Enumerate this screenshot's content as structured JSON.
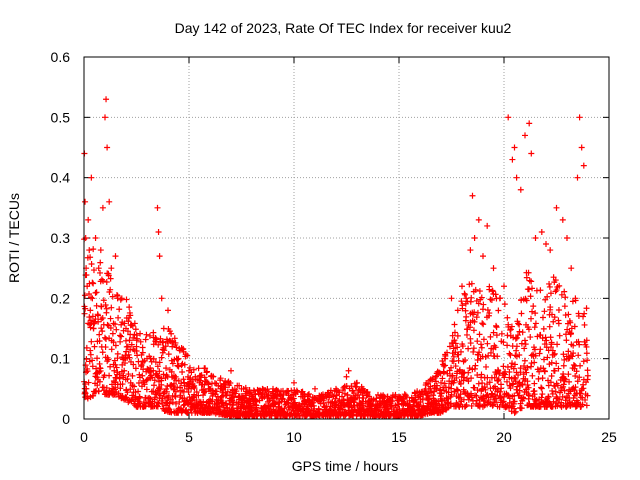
{
  "chart_data": {
    "type": "scatter",
    "title": "Day 142 of 2023, Rate Of TEC Index for receiver kuu2",
    "xlabel": "GPS time / hours",
    "ylabel": "ROTI / TECUs",
    "xlim": [
      0,
      25
    ],
    "ylim": [
      0,
      0.6
    ],
    "xticks": [
      "0",
      "5",
      "10",
      "15",
      "20",
      "25"
    ],
    "yticks": [
      "0",
      "0.1",
      "0.2",
      "0.3",
      "0.4",
      "0.5",
      "0.6"
    ],
    "grid": true,
    "marker": "+",
    "color": "#ff0000",
    "series": [
      {
        "x": [
          0.02,
          0.05,
          0.08,
          0.1,
          0.15,
          0.2,
          0.25,
          0.3,
          0.35,
          0.4,
          0.45,
          0.5,
          0.55,
          0.6,
          0.7,
          0.8,
          0.9,
          1.0,
          1.05,
          1.1,
          1.2,
          1.3,
          1.5,
          1.6,
          1.8,
          2.0,
          2.2,
          2.5,
          2.8,
          3.0,
          3.3,
          3.5,
          3.55,
          3.6,
          3.7,
          3.8,
          4.0,
          4.2,
          4.5,
          4.8,
          5.0,
          5.3,
          5.5,
          6.0,
          6.5,
          7.0,
          7.5,
          8.0,
          8.5,
          9.0,
          9.5,
          10.0,
          10.5,
          11.0,
          11.5,
          12.0,
          12.5,
          12.6,
          13.0,
          13.5,
          14.0,
          14.5,
          15.0,
          15.5,
          16.0,
          16.5,
          17.0,
          17.2,
          17.5,
          17.8,
          18.0,
          18.2,
          18.4,
          18.5,
          18.6,
          18.8,
          19.0,
          19.2,
          19.5,
          19.8,
          20.0,
          20.2,
          20.4,
          20.5,
          20.6,
          20.8,
          21.0,
          21.2,
          21.3,
          21.5,
          21.8,
          22.0,
          22.2,
          22.5,
          22.8,
          23.0,
          23.2,
          23.4,
          23.5,
          23.6,
          23.7,
          23.8
        ],
        "y": [
          0.44,
          0.36,
          0.3,
          0.25,
          0.22,
          0.33,
          0.28,
          0.18,
          0.4,
          0.2,
          0.15,
          0.12,
          0.3,
          0.21,
          0.25,
          0.28,
          0.35,
          0.5,
          0.53,
          0.45,
          0.36,
          0.25,
          0.27,
          0.2,
          0.2,
          0.15,
          0.14,
          0.12,
          0.11,
          0.1,
          0.08,
          0.35,
          0.31,
          0.27,
          0.2,
          0.15,
          0.18,
          0.12,
          0.1,
          0.09,
          0.08,
          0.07,
          0.06,
          0.05,
          0.05,
          0.08,
          0.05,
          0.04,
          0.05,
          0.05,
          0.04,
          0.06,
          0.04,
          0.05,
          0.04,
          0.05,
          0.07,
          0.08,
          0.06,
          0.04,
          0.04,
          0.03,
          0.03,
          0.03,
          0.04,
          0.05,
          0.06,
          0.1,
          0.2,
          0.18,
          0.22,
          0.2,
          0.28,
          0.37,
          0.3,
          0.33,
          0.27,
          0.32,
          0.25,
          0.2,
          0.22,
          0.5,
          0.43,
          0.45,
          0.4,
          0.38,
          0.47,
          0.49,
          0.44,
          0.3,
          0.31,
          0.29,
          0.28,
          0.35,
          0.33,
          0.3,
          0.25,
          0.2,
          0.4,
          0.5,
          0.45,
          0.42
        ]
      }
    ],
    "band": {
      "hours": [
        0,
        0.5,
        1,
        1.5,
        2,
        2.5,
        3,
        3.5,
        4,
        4.5,
        5,
        5.5,
        6,
        7,
        8,
        9,
        10,
        11,
        12,
        13,
        14,
        15,
        16,
        16.5,
        17,
        17.5,
        18,
        18.5,
        19,
        19.5,
        20,
        20.5,
        21,
        21.5,
        22,
        22.5,
        23,
        23.5,
        24
      ],
      "low": [
        0.03,
        0.04,
        0.04,
        0.04,
        0.03,
        0.02,
        0.02,
        0.02,
        0.01,
        0.01,
        0.01,
        0.01,
        0.01,
        0.005,
        0.005,
        0.005,
        0.005,
        0.005,
        0.005,
        0.005,
        0.005,
        0.005,
        0.005,
        0.01,
        0.01,
        0.02,
        0.02,
        0.02,
        0.02,
        0.02,
        0.02,
        0.01,
        0.02,
        0.02,
        0.02,
        0.02,
        0.02,
        0.02,
        0.02
      ],
      "high": [
        0.3,
        0.28,
        0.26,
        0.22,
        0.2,
        0.16,
        0.15,
        0.14,
        0.16,
        0.13,
        0.1,
        0.09,
        0.08,
        0.06,
        0.05,
        0.05,
        0.05,
        0.04,
        0.05,
        0.06,
        0.04,
        0.04,
        0.05,
        0.07,
        0.09,
        0.14,
        0.2,
        0.24,
        0.22,
        0.22,
        0.2,
        0.14,
        0.25,
        0.24,
        0.22,
        0.25,
        0.2,
        0.2,
        0.2
      ]
    }
  }
}
